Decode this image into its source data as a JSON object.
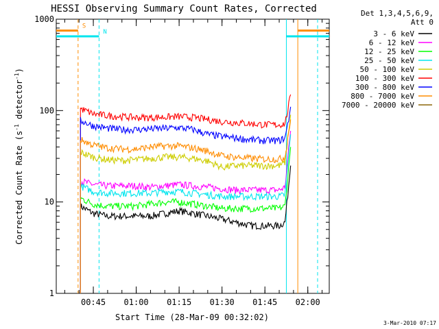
{
  "chart_data": {
    "type": "line",
    "title": "HESSI Observing Summary Count Rates, Corrected",
    "xlabel": "Start Time (28-Mar-09 00:32:02)",
    "ylabel": "Corrected Count Rate (s",
    "ylabel_sup1": "-1",
    "ylabel_mid": " detector",
    "ylabel_sup2": "-1",
    "ylabel_end": ")",
    "y_scale": "log",
    "ylim": [
      1,
      1000
    ],
    "xlim": [
      "00:32:02",
      "02:07:30"
    ],
    "x_ticks": [
      "00:45",
      "01:00",
      "01:15",
      "01:30",
      "01:45",
      "02:00"
    ],
    "y_ticks": [
      "1",
      "10",
      "100",
      "1000"
    ],
    "legend_title_1": "Det 1,3,4,5,6,9,",
    "legend_title_2": "Att 0",
    "legend_placement": "right",
    "footer_date": "3-Mar-2010 07:17",
    "markers": [
      {
        "label": "S",
        "color": "#ff8c00",
        "start": "00:32:02",
        "end": "00:39:40",
        "level": 750,
        "dashed_boundary": "00:39:40"
      },
      {
        "label": "N",
        "color": "#00e5ee",
        "start": "00:32:02",
        "end": "00:47:00",
        "level": 650,
        "dashed_boundary": "00:47:00"
      }
    ],
    "right_markers": [
      {
        "color": "#ff8c00",
        "start": "01:56:30",
        "end": "02:07:30",
        "level": 750
      },
      {
        "color": "#00e5ee",
        "start": "01:52:30",
        "end": "02:07:30",
        "level": 650
      }
    ],
    "series": [
      {
        "name": "3 - 6 keV",
        "color": "#000000",
        "start": "00:40:30",
        "end": "01:54:00",
        "times": [
          "00:40:30",
          "00:45:00",
          "00:50:00",
          "00:55:00",
          "01:00:00",
          "01:05:00",
          "01:10:00",
          "01:15:00",
          "01:20:00",
          "01:25:00",
          "01:30:00",
          "01:35:00",
          "01:40:00",
          "01:45:00",
          "01:50:00",
          "01:52:00",
          "01:53:00",
          "01:54:00"
        ],
        "values": [
          9,
          7.5,
          7,
          7,
          7,
          7,
          7.5,
          8,
          7.5,
          7,
          6.5,
          6,
          5.5,
          5.5,
          5.5,
          6,
          12,
          25
        ]
      },
      {
        "name": "6 - 12 keV",
        "color": "#ff00ff",
        "start": "00:40:30",
        "end": "01:54:00",
        "times": [
          "00:40:30",
          "00:45:00",
          "00:50:00",
          "00:55:00",
          "01:00:00",
          "01:05:00",
          "01:10:00",
          "01:15:00",
          "01:20:00",
          "01:25:00",
          "01:30:00",
          "01:35:00",
          "01:40:00",
          "01:45:00",
          "01:50:00",
          "01:52:00",
          "01:53:00",
          "01:54:00"
        ],
        "values": [
          17,
          15.5,
          15,
          15,
          15,
          14.5,
          15,
          15.5,
          15,
          14.5,
          14,
          13.5,
          13.5,
          13.5,
          13.5,
          14.5,
          30,
          60
        ]
      },
      {
        "name": "12 - 25 keV",
        "color": "#00ff00",
        "start": "00:40:30",
        "end": "01:54:00",
        "times": [
          "00:40:30",
          "00:45:00",
          "00:50:00",
          "00:55:00",
          "01:00:00",
          "01:05:00",
          "01:10:00",
          "01:15:00",
          "01:20:00",
          "01:25:00",
          "01:30:00",
          "01:35:00",
          "01:40:00",
          "01:45:00",
          "01:50:00",
          "01:52:00",
          "01:53:00",
          "01:54:00"
        ],
        "values": [
          11,
          9.5,
          9,
          9,
          9,
          9.5,
          10,
          10,
          9.5,
          9,
          8.5,
          8.5,
          8.5,
          8.5,
          8.5,
          9,
          18,
          40
        ]
      },
      {
        "name": "25 - 50 keV",
        "color": "#00e5ee",
        "start": "00:40:30",
        "end": "01:54:00",
        "times": [
          "00:40:30",
          "00:45:00",
          "00:50:00",
          "00:55:00",
          "01:00:00",
          "01:05:00",
          "01:10:00",
          "01:15:00",
          "01:20:00",
          "01:25:00",
          "01:30:00",
          "01:35:00",
          "01:40:00",
          "01:45:00",
          "01:50:00",
          "01:52:00",
          "01:53:00",
          "01:54:00"
        ],
        "values": [
          15,
          13,
          12.5,
          12.5,
          12.5,
          12.5,
          13,
          13,
          12.5,
          12,
          11.5,
          11.5,
          11.5,
          11.5,
          11.5,
          12,
          25,
          55
        ]
      },
      {
        "name": "50 - 100 keV",
        "color": "#cdcd00",
        "start": "00:40:30",
        "end": "01:54:00",
        "times": [
          "00:40:30",
          "00:45:00",
          "00:50:00",
          "00:55:00",
          "01:00:00",
          "01:05:00",
          "01:10:00",
          "01:15:00",
          "01:20:00",
          "01:25:00",
          "01:30:00",
          "01:35:00",
          "01:40:00",
          "01:45:00",
          "01:50:00",
          "01:52:00",
          "01:53:00",
          "01:54:00"
        ],
        "values": [
          35,
          31,
          29,
          28.5,
          29,
          30,
          31,
          31,
          30,
          28,
          24,
          25,
          25,
          25,
          25,
          27,
          50,
          90
        ]
      },
      {
        "name": "100 - 300 keV",
        "color": "#ff0000",
        "start": "00:40:30",
        "end": "01:54:00",
        "times": [
          "00:40:30",
          "00:45:00",
          "00:50:00",
          "00:55:00",
          "01:00:00",
          "01:05:00",
          "01:10:00",
          "01:15:00",
          "01:20:00",
          "01:25:00",
          "01:30:00",
          "01:35:00",
          "01:40:00",
          "01:45:00",
          "01:50:00",
          "01:52:00",
          "01:53:00",
          "01:54:00"
        ],
        "values": [
          105,
          92,
          88,
          86,
          84,
          84,
          85,
          86,
          84,
          80,
          76,
          74,
          72,
          70,
          70,
          72,
          100,
          150
        ]
      },
      {
        "name": "300 - 800 keV",
        "color": "#0000ff",
        "start": "00:40:30",
        "end": "01:54:00",
        "times": [
          "00:40:30",
          "00:45:00",
          "00:50:00",
          "00:55:00",
          "01:00:00",
          "01:05:00",
          "01:10:00",
          "01:15:00",
          "01:20:00",
          "01:25:00",
          "01:30:00",
          "01:35:00",
          "01:40:00",
          "01:45:00",
          "01:50:00",
          "01:52:00",
          "01:53:00",
          "01:54:00"
        ],
        "values": [
          78,
          68,
          64,
          62,
          62,
          63,
          64,
          65,
          62,
          55,
          52,
          50,
          48,
          47,
          47,
          50,
          70,
          110
        ]
      },
      {
        "name": "800 - 7000 keV",
        "color": "#ff8c00",
        "start": "00:40:30",
        "end": "01:54:00",
        "times": [
          "00:40:30",
          "00:45:00",
          "00:50:00",
          "00:55:00",
          "01:00:00",
          "01:05:00",
          "01:10:00",
          "01:15:00",
          "01:20:00",
          "01:25:00",
          "01:30:00",
          "01:35:00",
          "01:40:00",
          "01:45:00",
          "01:50:00",
          "01:52:00",
          "01:53:00",
          "01:54:00"
        ],
        "values": [
          48,
          42,
          39,
          38,
          38,
          40,
          41,
          41,
          39,
          36,
          32,
          31,
          30,
          29.5,
          29.5,
          31,
          50,
          80
        ]
      },
      {
        "name": "7000 - 20000 keV",
        "color": "#8b6508",
        "start": "00:40:30",
        "end": "01:54:00",
        "times": [],
        "values": []
      }
    ],
    "grid": false
  }
}
